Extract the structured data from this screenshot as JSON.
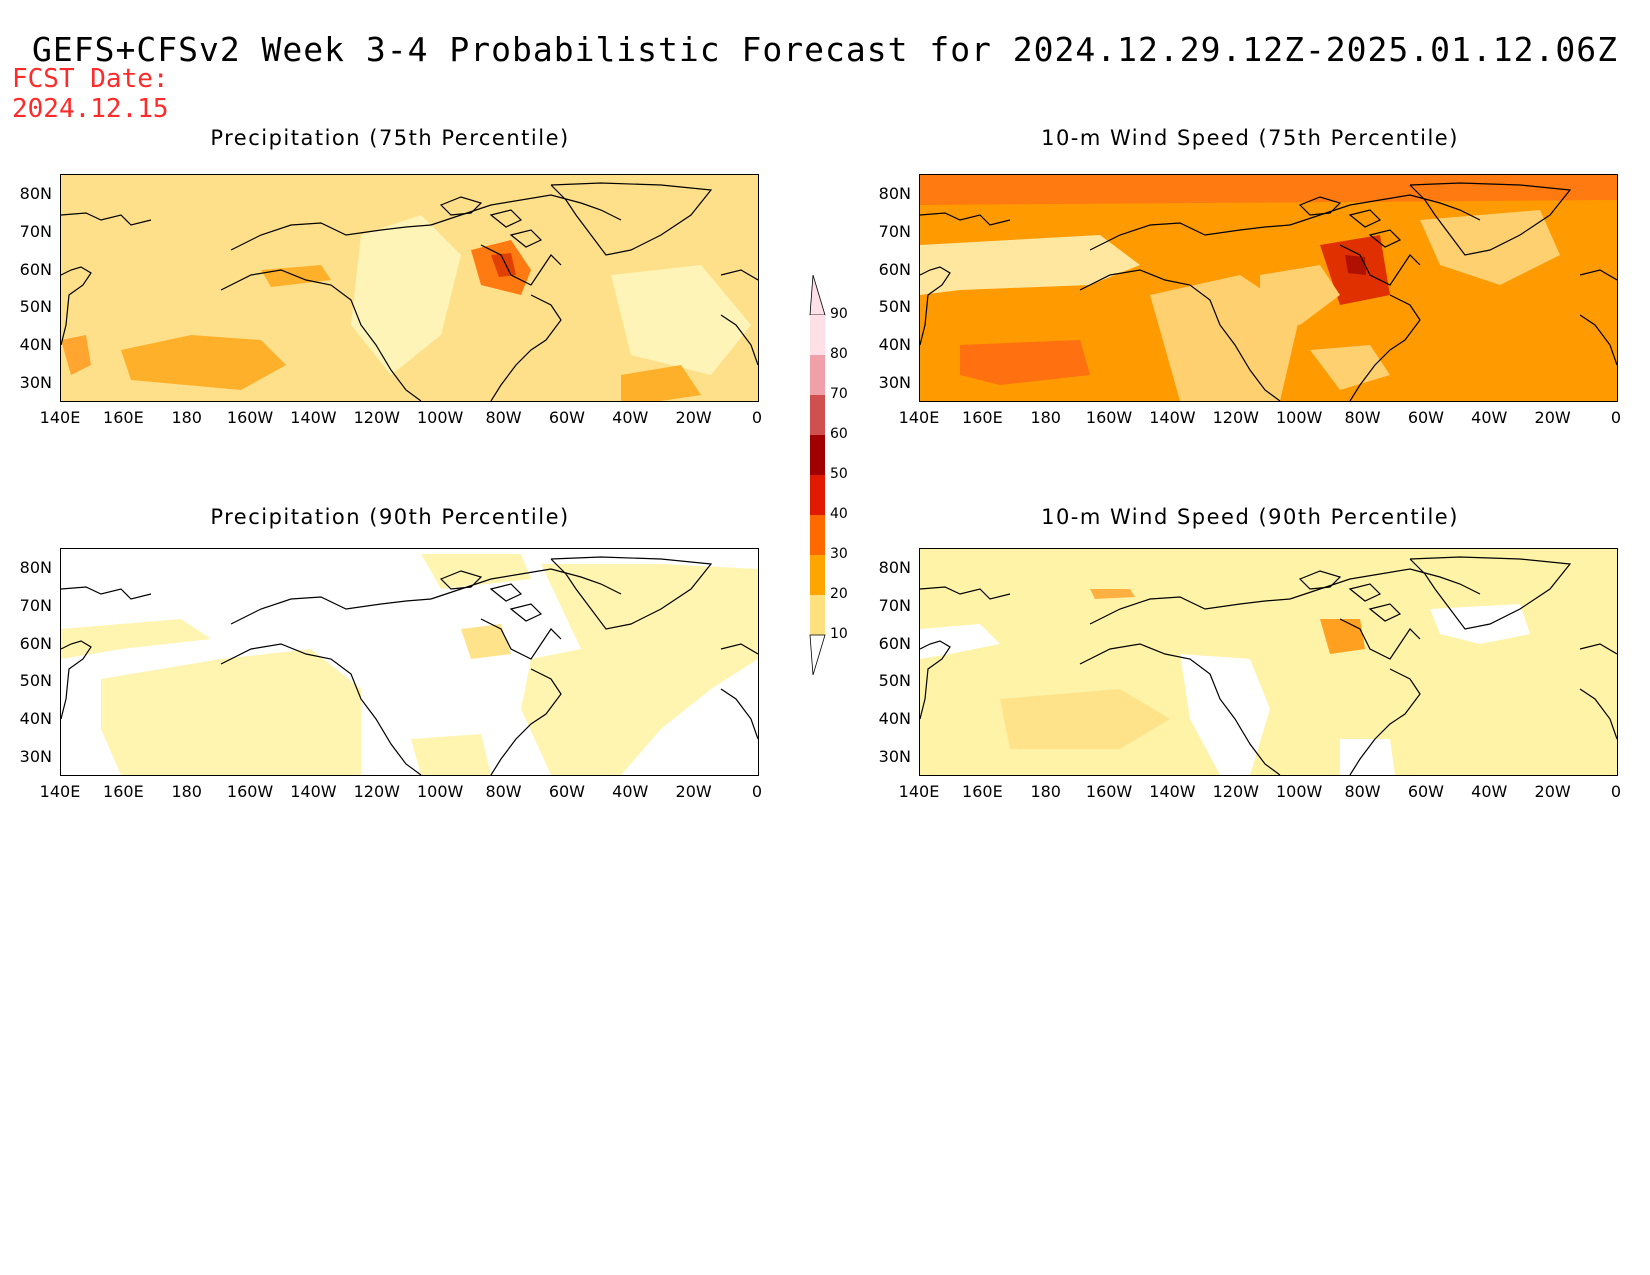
{
  "header": {
    "title": "GEFS+CFSv2 Week 3-4 Probabilistic Forecast for 2024.12.29.12Z-2025.01.12.06Z",
    "fcst_label": "FCST Date:",
    "fcst_date": "2024.12.15"
  },
  "panels": {
    "p1": {
      "title": "Precipitation (75th Percentile)",
      "base_color": "#fff0a8"
    },
    "p2": {
      "title": "10-m Wind Speed (75th Percentile)",
      "base_color": "#ff9a00"
    },
    "p3": {
      "title": "Precipitation (90th Percentile)",
      "base_color": "#ffffff"
    },
    "p4": {
      "title": "10-m Wind Speed (90th Percentile)",
      "base_color": "#fff7b0"
    }
  },
  "axes": {
    "lat_ticks": [
      "80N",
      "70N",
      "60N",
      "50N",
      "40N",
      "30N"
    ],
    "lon_ticks": [
      "140E",
      "160E",
      "180",
      "160W",
      "140W",
      "120W",
      "100W",
      "80W",
      "60W",
      "40W",
      "20W",
      "0"
    ]
  },
  "colorbar": {
    "levels": [
      "10",
      "20",
      "30",
      "40",
      "50",
      "60",
      "70",
      "80",
      "90"
    ],
    "colors": [
      "#fff7b0",
      "#ffe080",
      "#ffa500",
      "#ff6a00",
      "#e01a00",
      "#a00000",
      "#d05050",
      "#f0a0a8",
      "#ffe0e8"
    ]
  }
}
